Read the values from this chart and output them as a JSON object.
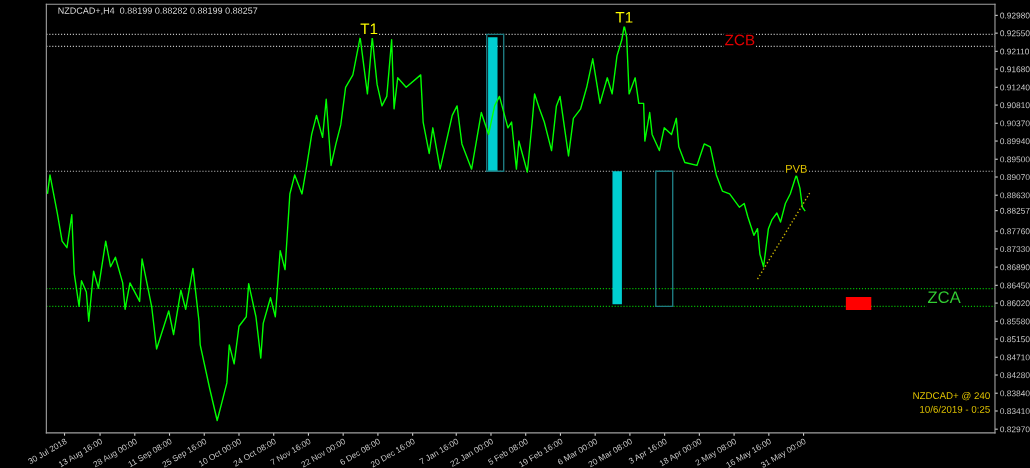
{
  "chart_data": {
    "type": "line",
    "title": "NZDCAD+,H4  0.88199 0.88282 0.88199 0.88257",
    "xlim": [
      "2018-07-22T12:00",
      "2019-08-18"
    ],
    "xticks": [
      {
        "value": "2018-07-30",
        "label": "30 Jul 2018"
      },
      {
        "value": "2018-08-13T16:00",
        "label": "13 Aug 16:00"
      },
      {
        "value": "2018-08-28",
        "label": "28 Aug 00:00"
      },
      {
        "value": "2018-09-11T08:00",
        "label": "11 Sep 08:00"
      },
      {
        "value": "2018-09-25T16:00",
        "label": "25 Sep 16:00"
      },
      {
        "value": "2018-10-10",
        "label": "10 Oct 00:00"
      },
      {
        "value": "2018-10-24T08:00",
        "label": "24 Oct 08:00"
      },
      {
        "value": "2018-11-07T16:00",
        "label": "7 Nov 16:00"
      },
      {
        "value": "2018-11-22",
        "label": "22 Nov 00:00"
      },
      {
        "value": "2018-12-06T08:00",
        "label": "6 Dec 08:00"
      },
      {
        "value": "2018-12-20T16:00",
        "label": "20 Dec 16:00"
      },
      {
        "value": "2019-01-07T16:00",
        "label": "7 Jan 16:00"
      },
      {
        "value": "2019-01-22",
        "label": "22 Jan 00:00"
      },
      {
        "value": "2019-02-05T08:00",
        "label": "5 Feb 08:00"
      },
      {
        "value": "2019-02-19T16:00",
        "label": "19 Feb 16:00"
      },
      {
        "value": "2019-03-06",
        "label": "6 Mar 00:00"
      },
      {
        "value": "2019-03-20T08:00",
        "label": "20 Mar 08:00"
      },
      {
        "value": "2019-04-03T16:00",
        "label": "3 Apr 16:00"
      },
      {
        "value": "2019-04-18",
        "label": "18 Apr 00:00"
      },
      {
        "value": "2019-05-02T08:00",
        "label": "2 May 08:00"
      },
      {
        "value": "2019-05-16T16:00",
        "label": "16 May 16:00"
      },
      {
        "value": "2019-05-31",
        "label": "31 May 00:00"
      }
    ],
    "ylim": [
      0.8288,
      0.9325
    ],
    "yticks": [
      {
        "value": 0.9298,
        "label": "0.92980"
      },
      {
        "value": 0.9255,
        "label": "0.92550"
      },
      {
        "value": 0.9211,
        "label": "0.92110"
      },
      {
        "value": 0.9168,
        "label": "0.91680"
      },
      {
        "value": 0.9124,
        "label": "0.91240"
      },
      {
        "value": 0.9081,
        "label": "0.90810"
      },
      {
        "value": 0.9037,
        "label": "0.90370"
      },
      {
        "value": 0.8994,
        "label": "0.89940"
      },
      {
        "value": 0.895,
        "label": "0.89500"
      },
      {
        "value": 0.8907,
        "label": "0.89070"
      },
      {
        "value": 0.8863,
        "label": "0.88630"
      },
      {
        "value": 0.88257,
        "label": "0.88257"
      },
      {
        "value": 0.8776,
        "label": "0.87760"
      },
      {
        "value": 0.8733,
        "label": "0.87330"
      },
      {
        "value": 0.8689,
        "label": "0.86890"
      },
      {
        "value": 0.8645,
        "label": "0.86450"
      },
      {
        "value": 0.8602,
        "label": "0.86020"
      },
      {
        "value": 0.8558,
        "label": "0.85580"
      },
      {
        "value": 0.8515,
        "label": "0.85150"
      },
      {
        "value": 0.8471,
        "label": "0.84710"
      },
      {
        "value": 0.8428,
        "label": "0.84280"
      },
      {
        "value": 0.8384,
        "label": "0.83840"
      },
      {
        "value": 0.8341,
        "label": "0.83410"
      },
      {
        "value": 0.8297,
        "label": "0.82970"
      }
    ],
    "series": [
      {
        "color": "#00ff00",
        "x": [
          "2018-07-23",
          "2018-07-24",
          "2018-07-27",
          "2018-07-29",
          "2018-07-31",
          "2018-08-02",
          "2018-08-03",
          "2018-08-05",
          "2018-08-06",
          "2018-08-08",
          "2018-08-09",
          "2018-08-11",
          "2018-08-13",
          "2018-08-16",
          "2018-08-18",
          "2018-08-20",
          "2018-08-23",
          "2018-08-24",
          "2018-08-26",
          "2018-08-30",
          "2018-08-31",
          "2018-09-04",
          "2018-09-06",
          "2018-09-09",
          "2018-09-11",
          "2018-09-13",
          "2018-09-16",
          "2018-09-18",
          "2018-09-21",
          "2018-09-23T12:00",
          "2018-09-24",
          "2018-09-28",
          "2018-10-01",
          "2018-10-03",
          "2018-10-05",
          "2018-10-06",
          "2018-10-08",
          "2018-10-10",
          "2018-10-13",
          "2018-10-14",
          "2018-10-17",
          "2018-10-19",
          "2018-10-20",
          "2018-10-23",
          "2018-10-25",
          "2018-10-27",
          "2018-10-29",
          "2018-10-31",
          "2018-11-02",
          "2018-11-05",
          "2018-11-07",
          "2018-11-09",
          "2018-11-11",
          "2018-11-13T12:00",
          "2018-11-15",
          "2018-11-17",
          "2018-11-19",
          "2018-11-21",
          "2018-11-23",
          "2018-11-26",
          "2018-11-29",
          "2018-12-02",
          "2018-12-04",
          "2018-12-06",
          "2018-12-08",
          "2018-12-10",
          "2018-12-12",
          "2018-12-13",
          "2018-12-14T12:00",
          "2018-12-18",
          "2018-12-24",
          "2018-12-25",
          "2018-12-27T12:00",
          "2018-12-29",
          "2019-01-01",
          "2019-01-06",
          "2019-01-08",
          "2019-01-10",
          "2019-01-14",
          "2019-01-18",
          "2019-01-21",
          "2019-01-23T12:00",
          "2019-01-25T12:00",
          "2019-01-29",
          "2019-01-30T12:00",
          "2019-02-01T12:00",
          "2019-02-02T12:00",
          "2019-02-06",
          "2019-02-08",
          "2019-02-09",
          "2019-02-11",
          "2019-02-13",
          "2019-02-16",
          "2019-02-18",
          "2019-02-19T12:00",
          "2019-02-23",
          "2019-02-25",
          "2019-02-28",
          "2019-03-02T12:00",
          "2019-03-05",
          "2019-03-08",
          "2019-03-11",
          "2019-03-13",
          "2019-03-15",
          "2019-03-17",
          "2019-03-18",
          "2019-03-19",
          "2019-03-20",
          "2019-03-22T12:00",
          "2019-03-24",
          "2019-03-26",
          "2019-03-26T12:00",
          "2019-03-28T12:00",
          "2019-03-29T12:00",
          "2019-04-01T12:00",
          "2019-04-03T12:00",
          "2019-04-06T12:00",
          "2019-04-08T12:00",
          "2019-04-09T12:00",
          "2019-04-12",
          "2019-04-17",
          "2019-04-20",
          "2019-04-22T12:00",
          "2019-04-24T12:00",
          "2019-04-25",
          "2019-04-27T12:00",
          "2019-04-30T12:00",
          "2019-05-04T12:00",
          "2019-05-06T12:00",
          "2019-05-08",
          "2019-05-10T12:00",
          "2019-05-12",
          "2019-05-13",
          "2019-05-14T12:00",
          "2019-05-16T12:00",
          "2019-05-18",
          "2019-05-20",
          "2019-05-21T12:00",
          "2019-05-23T12:00",
          "2019-05-25T12:00",
          "2019-05-28",
          "2019-05-29T12:00",
          "2019-05-30T12:00",
          "2019-05-31T12:00"
        ],
        "values": [
          0.8868,
          0.8912,
          0.882,
          0.8752,
          0.8736,
          0.8816,
          0.8674,
          0.8594,
          0.8656,
          0.8629,
          0.8558,
          0.8679,
          0.8638,
          0.8752,
          0.869,
          0.8713,
          0.8651,
          0.8587,
          0.8651,
          0.8606,
          0.8709,
          0.8592,
          0.8491,
          0.8546,
          0.8583,
          0.8526,
          0.8633,
          0.8587,
          0.8686,
          0.8558,
          0.8501,
          0.8393,
          0.8318,
          0.8363,
          0.8409,
          0.8501,
          0.8455,
          0.8546,
          0.8569,
          0.8649,
          0.8569,
          0.8469,
          0.8553,
          0.8615,
          0.8569,
          0.8729,
          0.8683,
          0.8866,
          0.8912,
          0.8866,
          0.8935,
          0.901,
          0.9056,
          0.9003,
          0.9095,
          0.8935,
          0.8987,
          0.9033,
          0.9124,
          0.9154,
          0.9245,
          0.9108,
          0.9245,
          0.9131,
          0.9079,
          0.9102,
          0.9239,
          0.9072,
          0.9147,
          0.9124,
          0.9154,
          0.904,
          0.8964,
          0.9026,
          0.8926,
          0.9056,
          0.9079,
          0.8987,
          0.8926,
          0.9063,
          0.901,
          0.9079,
          0.9102,
          0.9026,
          0.904,
          0.8926,
          0.8994,
          0.8919,
          0.904,
          0.9108,
          0.9072,
          0.904,
          0.8971,
          0.9079,
          0.9102,
          0.8958,
          0.9049,
          0.9072,
          0.9124,
          0.9193,
          0.9085,
          0.9147,
          0.9108,
          0.92,
          0.9239,
          0.9273,
          0.9245,
          0.9108,
          0.9147,
          0.9085,
          0.9085,
          0.8994,
          0.9063,
          0.901,
          0.8971,
          0.9026,
          0.901,
          0.9049,
          0.898,
          0.8942,
          0.8935,
          0.8987,
          0.898,
          0.8926,
          0.8912,
          0.8873,
          0.8866,
          0.8834,
          0.8843,
          0.8811,
          0.8766,
          0.8782,
          0.872,
          0.869,
          0.8782,
          0.8804,
          0.882,
          0.8798,
          0.8843,
          0.8866,
          0.8912,
          0.888,
          0.8834,
          0.8826
        ]
      },
      {
        "type": "line",
        "color": "#c8b400",
        "line_style": "dotted",
        "x": [
          "2019-05-12",
          "2019-06-02T12:00"
        ],
        "values": [
          0.866,
          0.8868
        ]
      },
      {
        "type": "bar",
        "color": "#00ced1",
        "x": [
          "2019-01-22T18:00",
          "2019-03-15T02:00"
        ],
        "base": [
          0.8921,
          0.8599
        ],
        "values": [
          0.0324,
          0.0322
        ]
      },
      {
        "type": "bar",
        "color": "#1e7a80",
        "line_style": "solid",
        "x": [
          "2019-01-23T18:00",
          "2019-04-03T12:00"
        ],
        "base": [
          0.8921,
          0.8594
        ],
        "values": [
          0.0331,
          0.0327
        ]
      },
      {
        "type": "bar",
        "color": "#ff0000",
        "x": [
          "2019-06-22T17:00"
        ],
        "base": [
          0.8585
        ],
        "values": [
          0.0032
        ]
      }
    ],
    "ref_lines": [
      {
        "axis": "y",
        "value": 0.9252,
        "color": "#c0c0c0",
        "line_style": "dotted"
      },
      {
        "axis": "y",
        "value": 0.9223,
        "color": "#c0c0c0",
        "line_style": "dotted"
      },
      {
        "axis": "y",
        "value": 0.8921,
        "color": "#c0c0c0",
        "line_style": "dotted"
      },
      {
        "axis": "y",
        "value": 0.8637,
        "color": "#00c000",
        "line_style": "dotted"
      },
      {
        "axis": "y",
        "value": 0.8594,
        "color": "#00c000",
        "line_style": "dotted"
      }
    ],
    "annotations": [
      {
        "text": "T1",
        "x": "2018-12-02T17:00",
        "y": 0.9245
      },
      {
        "text": "T1",
        "x": "2019-03-18",
        "y": 0.9273
      },
      {
        "text": "PVB",
        "x": "2019-05-28",
        "y": 0.8912
      },
      {
        "text": "ZCB",
        "x": "2019-05-04T17:00",
        "y": 0.9218
      },
      {
        "text": "ZCA",
        "x": "2019-07-28",
        "y": 0.8594
      },
      "NZDCAD+ @ 240",
      "10/6/2019 - 0:25"
    ]
  }
}
